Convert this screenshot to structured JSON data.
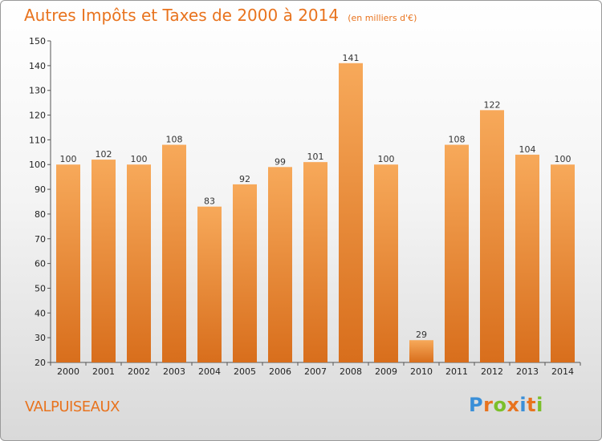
{
  "header": {
    "title": "Autres Impôts et Taxes de 2000 à 2014",
    "unit": "(en milliers d'€)"
  },
  "footer": {
    "place": "VALPUISEAUX",
    "brand_letters": [
      {
        "char": "P",
        "color": "#3a8fd8"
      },
      {
        "char": "r",
        "color": "#e8731e"
      },
      {
        "char": "o",
        "color": "#7bbf2a"
      },
      {
        "char": "x",
        "color": "#e8731e"
      },
      {
        "char": "i",
        "color": "#3a8fd8"
      },
      {
        "char": "t",
        "color": "#e8731e"
      },
      {
        "char": "i",
        "color": "#7bbf2a"
      }
    ]
  },
  "colors": {
    "accent": "#e8731e",
    "bar_top": "#f7a95a",
    "bar_bottom": "#d86e1c"
  },
  "chart_data": {
    "type": "bar",
    "title": "Autres Impôts et Taxes de 2000 à 2014",
    "subtitle": "(en milliers d'€)",
    "categories": [
      "2000",
      "2001",
      "2002",
      "2003",
      "2004",
      "2005",
      "2006",
      "2007",
      "2008",
      "2009",
      "2010",
      "2011",
      "2012",
      "2013",
      "2014"
    ],
    "values": [
      100,
      102,
      100,
      108,
      83,
      92,
      99,
      101,
      141,
      100,
      29,
      108,
      122,
      104,
      100
    ],
    "xlabel": "",
    "ylabel": "",
    "ylim": [
      20,
      150
    ],
    "yticks": [
      20,
      30,
      40,
      50,
      60,
      70,
      80,
      90,
      100,
      110,
      120,
      130,
      140,
      150
    ],
    "grid": false,
    "legend": "none"
  }
}
